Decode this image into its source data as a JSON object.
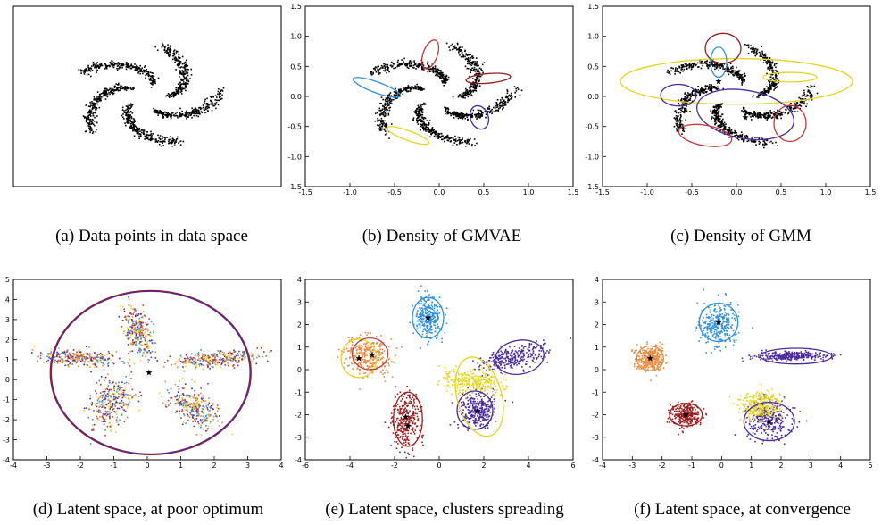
{
  "captions": {
    "a": "(a) Data points in data space",
    "b": "(b) Density of GMVAE",
    "c": "(c) Density of GMM",
    "d": "(d) Latent space, at poor optimum",
    "e": "(e) Latent space, clusters spreading",
    "f": "(f) Latent space, at convergence"
  },
  "colors": {
    "points": "#000000",
    "red": "#c0393b",
    "darkred": "#9b1c1c",
    "blue": "#2f8fe0",
    "yellow": "#e6d51c",
    "purple": "#4b2aa0",
    "orange": "#e8893c"
  },
  "chart_data": [
    {
      "id": "a",
      "type": "scatter",
      "title": "",
      "xlim": [
        -1.5,
        1.5
      ],
      "ylim": [
        -1.5,
        1.5
      ],
      "show_ticks": false,
      "arms": [
        {
          "start_angle_deg": 72,
          "color": "#000000"
        },
        {
          "start_angle_deg": 144,
          "color": "#000000"
        },
        {
          "start_angle_deg": 216,
          "color": "#000000"
        },
        {
          "start_angle_deg": 288,
          "color": "#000000"
        },
        {
          "start_angle_deg": 0,
          "color": "#000000"
        }
      ],
      "ellipses": [],
      "centers": []
    },
    {
      "id": "b",
      "type": "scatter",
      "title": "",
      "xlim": [
        -1.5,
        1.5
      ],
      "ylim": [
        -1.5,
        1.5
      ],
      "xticks": [
        "-1.5",
        "-1.0",
        "-0.5",
        "0.0",
        "0.5",
        "1.0",
        "1.5"
      ],
      "yticks": [
        "-1.5",
        "-1.0",
        "-0.5",
        "0.0",
        "0.5",
        "1.0",
        "1.5"
      ],
      "arms": [
        {
          "start_angle_deg": 72,
          "color": "#000000"
        },
        {
          "start_angle_deg": 144,
          "color": "#000000"
        },
        {
          "start_angle_deg": 216,
          "color": "#000000"
        },
        {
          "start_angle_deg": 288,
          "color": "#000000"
        },
        {
          "start_angle_deg": 0,
          "color": "#000000"
        }
      ],
      "density_contours": [
        {
          "color": "#c0393b",
          "cx": -0.1,
          "cy": 0.7,
          "rx": 0.08,
          "ry": 0.25,
          "rot": -20
        },
        {
          "color": "#9b1c1c",
          "cx": 0.55,
          "cy": 0.3,
          "rx": 0.25,
          "ry": 0.08,
          "rot": 5
        },
        {
          "color": "#2f8fe0",
          "cx": -0.7,
          "cy": 0.15,
          "rx": 0.28,
          "ry": 0.09,
          "rot": -20
        },
        {
          "color": "#e6d51c",
          "cx": -0.35,
          "cy": -0.65,
          "rx": 0.25,
          "ry": 0.08,
          "rot": -20
        },
        {
          "color": "#4b2aa0",
          "cx": 0.45,
          "cy": -0.35,
          "rx": 0.1,
          "ry": 0.2,
          "rot": 20
        }
      ]
    },
    {
      "id": "c",
      "type": "scatter",
      "title": "",
      "xlim": [
        -1.5,
        1.5
      ],
      "ylim": [
        -1.5,
        1.5
      ],
      "xticks": [
        "-1.5",
        "-1.0",
        "-0.5",
        "0.0",
        "0.5",
        "1.0",
        "1.5"
      ],
      "yticks": [
        "-1.5",
        "-1.0",
        "-0.5",
        "0.0",
        "0.5",
        "1.0",
        "1.5"
      ],
      "arms": [
        {
          "start_angle_deg": 72,
          "color": "#000000"
        },
        {
          "start_angle_deg": 144,
          "color": "#000000"
        },
        {
          "start_angle_deg": 216,
          "color": "#000000"
        },
        {
          "start_angle_deg": 288,
          "color": "#000000"
        },
        {
          "start_angle_deg": 0,
          "color": "#000000"
        }
      ],
      "ellipses": [
        {
          "color": "#e6d51c",
          "cx": 0.0,
          "cy": 0.25,
          "rx": 1.3,
          "ry": 0.38,
          "rot": 0
        },
        {
          "color": "#9b1c1c",
          "cx": -0.15,
          "cy": 0.8,
          "rx": 0.2,
          "ry": 0.25,
          "rot": 0
        },
        {
          "color": "#2f8fe0",
          "cx": -0.2,
          "cy": 0.57,
          "rx": 0.09,
          "ry": 0.25,
          "rot": 0
        },
        {
          "color": "#e6d51c",
          "cx": 0.6,
          "cy": 0.32,
          "rx": 0.3,
          "ry": 0.08,
          "rot": 0
        },
        {
          "color": "#4b2aa0",
          "cx": -0.65,
          "cy": 0.02,
          "rx": 0.2,
          "ry": 0.18,
          "rot": 0
        },
        {
          "color": "#4b2aa0",
          "cx": 0.1,
          "cy": -0.3,
          "rx": 0.55,
          "ry": 0.4,
          "rot": -10
        },
        {
          "color": "#c0393b",
          "cx": 0.6,
          "cy": -0.45,
          "rx": 0.18,
          "ry": 0.3,
          "rot": 0
        },
        {
          "color": "#c0393b",
          "cx": -0.35,
          "cy": -0.65,
          "rx": 0.3,
          "ry": 0.17,
          "rot": -10
        }
      ],
      "centers": [
        {
          "x": -0.2,
          "y": 0.25
        },
        {
          "x": 0.1,
          "y": -0.35
        }
      ]
    },
    {
      "id": "d",
      "type": "scatter",
      "title": "",
      "xlim": [
        -4,
        4
      ],
      "ylim": [
        -4,
        5
      ],
      "xticks": [
        "-4",
        "-3",
        "-2",
        "-1",
        "0",
        "1",
        "2",
        "3",
        "4"
      ],
      "yticks": [
        "-4",
        "-3",
        "-2",
        "-1",
        "0",
        "1",
        "2",
        "3",
        "4",
        "5"
      ],
      "clusters": [
        {
          "color": "mix",
          "cx": -0.3,
          "cy": 2.4,
          "sx": 0.2,
          "sy": 0.6,
          "rot": 10
        },
        {
          "color": "mix",
          "cx": -2.0,
          "cy": 1.1,
          "sx": 0.6,
          "sy": 0.2,
          "rot": -5
        },
        {
          "color": "mix",
          "cx": 2.0,
          "cy": 1.0,
          "sx": 0.7,
          "sy": 0.2,
          "rot": 10
        },
        {
          "color": "mix",
          "cx": -1.1,
          "cy": -1.2,
          "sx": 0.3,
          "sy": 0.6,
          "rot": -15
        },
        {
          "color": "mix",
          "cx": 1.4,
          "cy": -1.4,
          "sx": 0.3,
          "sy": 0.55,
          "rot": 30
        }
      ],
      "ellipses": [
        {
          "color": "#9b1c1c",
          "cx": 0.1,
          "cy": 0.35,
          "rx": 3.0,
          "ry": 4.1,
          "rot": 0
        },
        {
          "color": "#4b2aa0",
          "cx": 0.1,
          "cy": 0.35,
          "rx": 2.97,
          "ry": 4.06,
          "rot": 0
        }
      ],
      "centers": [
        {
          "x": 0.05,
          "y": 0.35
        }
      ]
    },
    {
      "id": "e",
      "type": "scatter",
      "title": "",
      "xlim": [
        -6,
        6
      ],
      "ylim": [
        -4,
        4
      ],
      "xticks": [
        "-6",
        "-4",
        "-2",
        "0",
        "2",
        "4",
        "6"
      ],
      "yticks": [
        "-4",
        "-3",
        "-2",
        "-1",
        "0",
        "1",
        "2",
        "3",
        "4"
      ],
      "clusters": [
        {
          "color": "#2f8fe0",
          "cx": -0.5,
          "cy": 2.3,
          "sx": 0.3,
          "sy": 0.45,
          "rot": 0
        },
        {
          "color": "#e8893c",
          "cx": -3.2,
          "cy": 0.6,
          "sx": 0.5,
          "sy": 0.45,
          "rot": 0
        },
        {
          "color": "#4b2aa0",
          "cx": 3.3,
          "cy": 0.5,
          "sx": 0.8,
          "sy": 0.25,
          "rot": 15
        },
        {
          "color": "#9b1c1c",
          "cx": -1.5,
          "cy": -2.3,
          "sx": 0.3,
          "sy": 0.6,
          "rot": 0
        },
        {
          "color": "#4b2aa0",
          "cx": 1.7,
          "cy": -1.8,
          "sx": 0.4,
          "sy": 0.4,
          "rot": 0
        },
        {
          "color": "#e6d51c",
          "cx": 1.5,
          "cy": -0.5,
          "sx": 0.7,
          "sy": 0.3,
          "rot": 0
        }
      ],
      "ellipses": [
        {
          "color": "#2f8fe0",
          "cx": -0.5,
          "cy": 2.3,
          "rx": 0.7,
          "ry": 0.9,
          "rot": 0
        },
        {
          "color": "#e6d51c",
          "cx": -3.6,
          "cy": 0.5,
          "rx": 0.8,
          "ry": 0.85,
          "rot": 0
        },
        {
          "color": "#c0393b",
          "cx": -3.1,
          "cy": 0.7,
          "rx": 0.8,
          "ry": 0.7,
          "rot": 0
        },
        {
          "color": "#4b2aa0",
          "cx": 3.6,
          "cy": 0.55,
          "rx": 1.1,
          "ry": 0.75,
          "rot": 10
        },
        {
          "color": "#9b1c1c",
          "cx": -1.4,
          "cy": -2.2,
          "rx": 0.65,
          "ry": 1.2,
          "rot": 0
        },
        {
          "color": "#4b2aa0",
          "cx": 1.6,
          "cy": -1.8,
          "rx": 0.8,
          "ry": 0.85,
          "rot": 0
        },
        {
          "color": "#e6d51c",
          "cx": 1.8,
          "cy": -1.2,
          "rx": 1.0,
          "ry": 1.8,
          "rot": 15
        }
      ],
      "centers": [
        {
          "x": -0.5,
          "y": 2.3
        },
        {
          "x": -3.6,
          "y": 0.5
        },
        {
          "x": -3.0,
          "y": 0.65
        },
        {
          "x": -1.5,
          "y": -2.1
        },
        {
          "x": -1.4,
          "y": -2.5
        },
        {
          "x": 1.7,
          "y": -1.85
        }
      ]
    },
    {
      "id": "f",
      "type": "scatter",
      "title": "",
      "xlim": [
        -4,
        5
      ],
      "ylim": [
        -4,
        4
      ],
      "xticks": [
        "-4",
        "-3",
        "-2",
        "-1",
        "0",
        "1",
        "2",
        "3",
        "4",
        "5"
      ],
      "yticks": [
        "-4",
        "-3",
        "-2",
        "-1",
        "0",
        "1",
        "2",
        "3",
        "4"
      ],
      "clusters": [
        {
          "color": "#2f8fe0",
          "cx": -0.1,
          "cy": 2.0,
          "sx": 0.3,
          "sy": 0.5,
          "rot": 0
        },
        {
          "color": "#e8893c",
          "cx": -2.4,
          "cy": 0.5,
          "sx": 0.25,
          "sy": 0.3,
          "rot": 0
        },
        {
          "color": "#4b2aa0",
          "cx": 2.3,
          "cy": 0.6,
          "sx": 0.6,
          "sy": 0.1,
          "rot": 0
        },
        {
          "color": "#9b1c1c",
          "cx": -1.2,
          "cy": -2.0,
          "sx": 0.25,
          "sy": 0.25,
          "rot": 0
        },
        {
          "color": "#4b2aa0",
          "cx": 1.6,
          "cy": -2.2,
          "sx": 0.35,
          "sy": 0.4,
          "rot": 0
        },
        {
          "color": "#e6d51c",
          "cx": 1.3,
          "cy": -1.6,
          "sx": 0.35,
          "sy": 0.3,
          "rot": 0
        }
      ],
      "ellipses": [
        {
          "color": "#2f8fe0",
          "cx": -0.1,
          "cy": 2.1,
          "rx": 0.65,
          "ry": 0.85,
          "rot": 0
        },
        {
          "color": "#e8893c",
          "cx": -2.4,
          "cy": 0.5,
          "rx": 0.45,
          "ry": 0.55,
          "rot": 0
        },
        {
          "color": "#4b2aa0",
          "cx": 2.5,
          "cy": 0.6,
          "rx": 1.2,
          "ry": 0.35,
          "rot": 0
        },
        {
          "color": "#9b1c1c",
          "cx": -1.2,
          "cy": -2.0,
          "rx": 0.55,
          "ry": 0.5,
          "rot": 0
        },
        {
          "color": "#4b2aa0",
          "cx": 1.6,
          "cy": -2.3,
          "rx": 0.85,
          "ry": 0.85,
          "rot": 0
        }
      ],
      "centers": [
        {
          "x": -0.1,
          "y": 2.1
        },
        {
          "x": -2.4,
          "y": 0.5
        },
        {
          "x": -1.2,
          "y": -2.0
        },
        {
          "x": 1.6,
          "y": -2.3
        }
      ]
    }
  ]
}
